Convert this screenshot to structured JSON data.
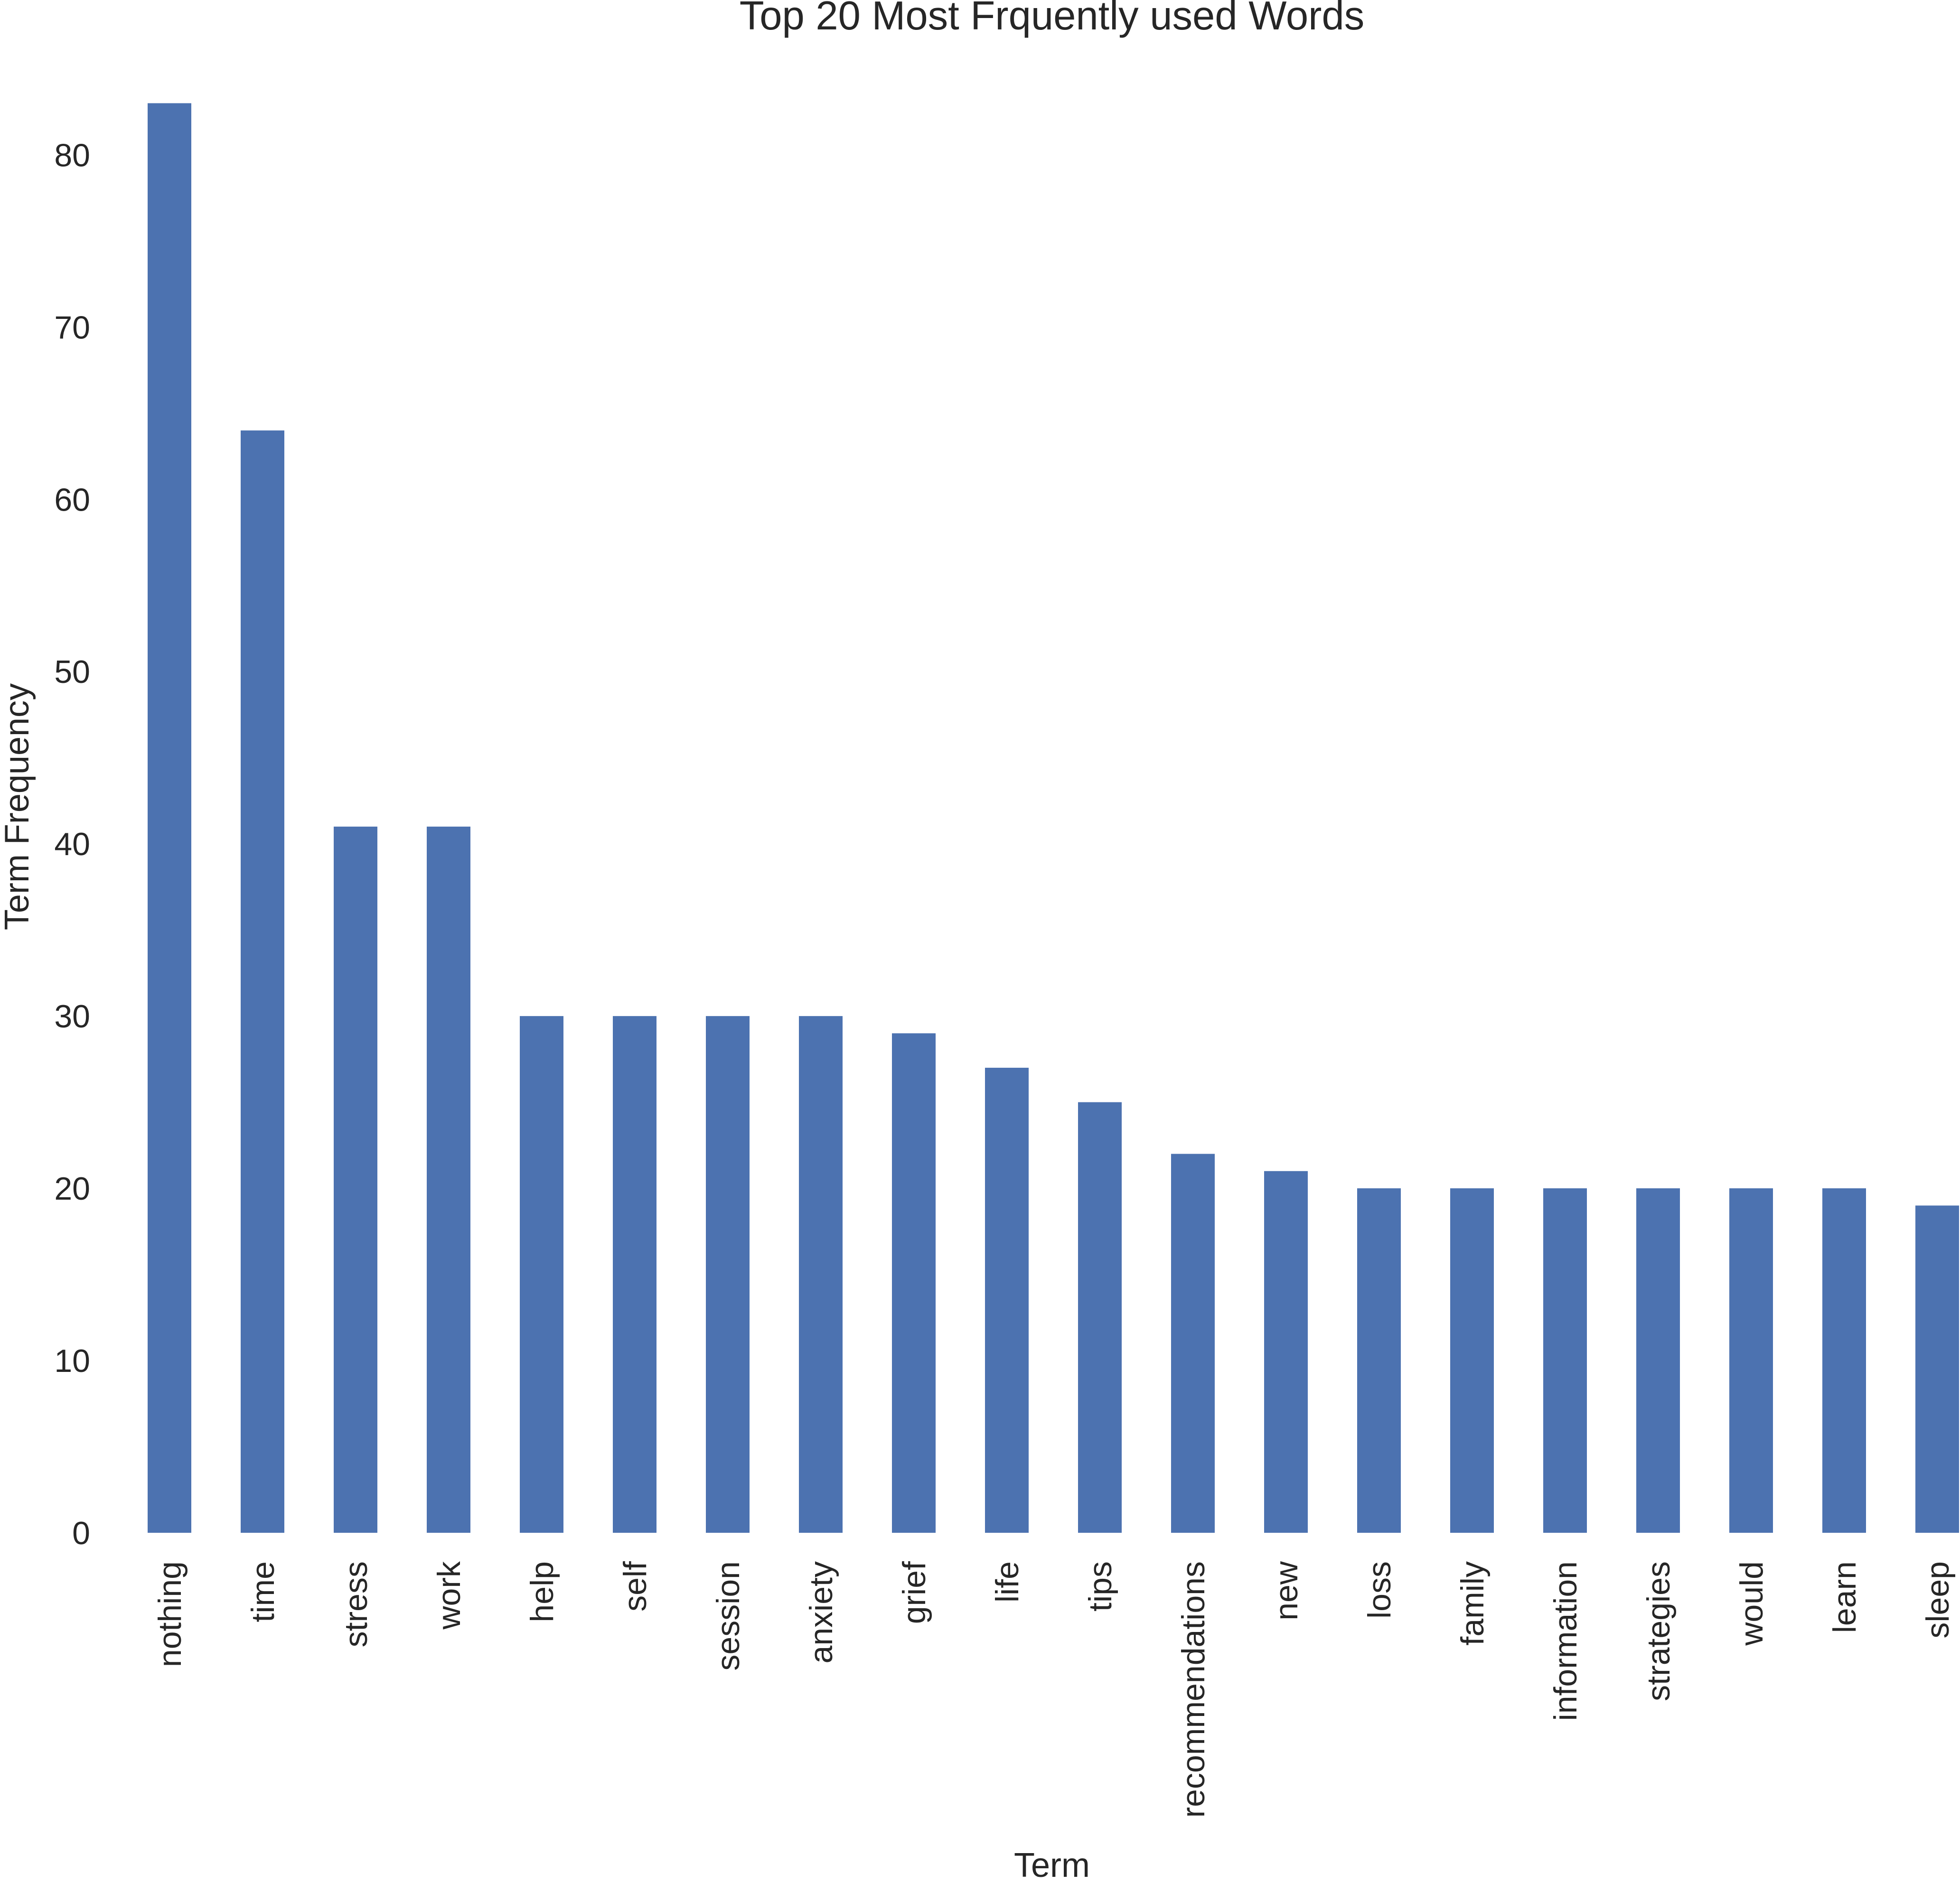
{
  "chart_data": {
    "type": "bar",
    "title": "Top 20 Most Frquently used Words",
    "xlabel": "Term",
    "ylabel": "Term Frequency",
    "categories": [
      "nothing",
      "time",
      "stress",
      "work",
      "help",
      "self",
      "session",
      "anxiety",
      "grief",
      "life",
      "tips",
      "recommendations",
      "new",
      "loss",
      "family",
      "information",
      "strategies",
      "would",
      "learn",
      "sleep"
    ],
    "values": [
      83,
      64,
      41,
      41,
      30,
      30,
      30,
      30,
      29,
      27,
      25,
      22,
      21,
      20,
      20,
      20,
      20,
      20,
      20,
      19
    ],
    "ylim": [
      0,
      88
    ],
    "yticks": [
      0,
      10,
      20,
      30,
      40,
      50,
      60,
      70,
      80
    ],
    "grid": false,
    "legend": false,
    "bar_color": "#4c72b0",
    "text_color": "#262626",
    "background": "#ffffff"
  }
}
